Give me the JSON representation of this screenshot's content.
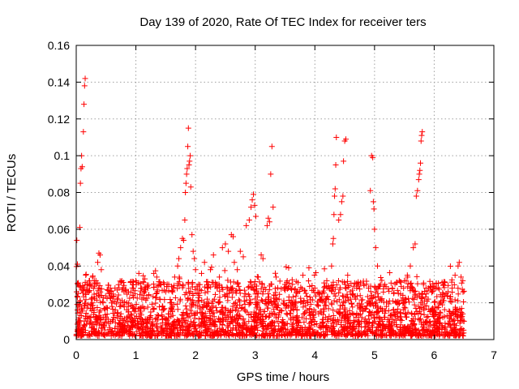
{
  "chart_data": {
    "type": "scatter",
    "title": "Day 139 of 2020, Rate Of TEC Index for receiver ters",
    "xlabel": "GPS time / hours",
    "ylabel": "ROTI / TECUs",
    "xlim": [
      0,
      7
    ],
    "ylim": [
      0,
      0.16
    ],
    "x_ticks": [
      0,
      1,
      2,
      3,
      4,
      5,
      6,
      7
    ],
    "x_tick_labels": [
      "0",
      "1",
      "2",
      "3",
      "4",
      "5",
      "6",
      "7"
    ],
    "y_ticks": [
      0,
      0.02,
      0.04,
      0.06,
      0.08,
      0.1,
      0.12,
      0.14,
      0.16
    ],
    "y_tick_labels": [
      "0",
      "0.02",
      "0.04",
      "0.06",
      "0.08",
      "0.1",
      "0.12",
      "0.14",
      "0.16"
    ],
    "grid": true,
    "marker": "plus",
    "color": "#ff0000",
    "series": [
      {
        "points": [
          [
            0.01,
            0.054
          ],
          [
            0.02,
            0.041
          ],
          [
            0.03,
            0.03
          ],
          [
            0.04,
            0.018
          ],
          [
            0.05,
            0.009
          ],
          [
            0.06,
            0.061
          ],
          [
            0.07,
            0.085
          ],
          [
            0.08,
            0.093
          ],
          [
            0.09,
            0.1
          ],
          [
            0.1,
            0.094
          ],
          [
            0.12,
            0.113
          ],
          [
            0.13,
            0.128
          ],
          [
            0.14,
            0.138
          ],
          [
            0.15,
            0.142
          ],
          [
            0.16,
            0.035
          ],
          [
            0.18,
            0.027
          ],
          [
            0.2,
            0.019
          ],
          [
            0.22,
            0.012
          ],
          [
            0.25,
            0.022
          ],
          [
            0.3,
            0.016
          ],
          [
            0.33,
            0.032
          ],
          [
            0.36,
            0.042
          ],
          [
            0.38,
            0.047
          ],
          [
            0.4,
            0.046
          ],
          [
            0.42,
            0.038
          ],
          [
            0.45,
            0.02
          ],
          [
            0.5,
            0.012
          ],
          [
            0.55,
            0.025
          ],
          [
            0.6,
            0.018
          ],
          [
            0.65,
            0.028
          ],
          [
            0.7,
            0.022
          ],
          [
            0.75,
            0.014
          ],
          [
            0.8,
            0.026
          ],
          [
            0.85,
            0.02
          ],
          [
            0.9,
            0.012
          ],
          [
            0.95,
            0.024
          ],
          [
            1.0,
            0.032
          ],
          [
            1.05,
            0.036
          ],
          [
            1.1,
            0.022
          ],
          [
            1.15,
            0.033
          ],
          [
            1.2,
            0.028
          ],
          [
            1.25,
            0.015
          ],
          [
            1.3,
            0.036
          ],
          [
            1.35,
            0.034
          ],
          [
            1.4,
            0.022
          ],
          [
            1.45,
            0.018
          ],
          [
            1.5,
            0.026
          ],
          [
            1.55,
            0.03
          ],
          [
            1.6,
            0.02
          ],
          [
            1.65,
            0.034
          ],
          [
            1.7,
            0.04
          ],
          [
            1.72,
            0.044
          ],
          [
            1.75,
            0.05
          ],
          [
            1.78,
            0.055
          ],
          [
            1.8,
            0.054
          ],
          [
            1.82,
            0.065
          ],
          [
            1.83,
            0.08
          ],
          [
            1.84,
            0.085
          ],
          [
            1.85,
            0.09
          ],
          [
            1.86,
            0.093
          ],
          [
            1.87,
            0.105
          ],
          [
            1.88,
            0.115
          ],
          [
            1.89,
            0.095
          ],
          [
            1.9,
            0.097
          ],
          [
            1.91,
            0.1
          ],
          [
            1.92,
            0.083
          ],
          [
            1.94,
            0.057
          ],
          [
            1.96,
            0.048
          ],
          [
            1.98,
            0.044
          ],
          [
            2.0,
            0.038
          ],
          [
            2.05,
            0.03
          ],
          [
            2.1,
            0.036
          ],
          [
            2.15,
            0.042
          ],
          [
            2.2,
            0.028
          ],
          [
            2.25,
            0.038
          ],
          [
            2.3,
            0.046
          ],
          [
            2.35,
            0.03
          ],
          [
            2.4,
            0.034
          ],
          [
            2.45,
            0.05
          ],
          [
            2.5,
            0.052
          ],
          [
            2.55,
            0.048
          ],
          [
            2.6,
            0.057
          ],
          [
            2.63,
            0.056
          ],
          [
            2.65,
            0.042
          ],
          [
            2.7,
            0.038
          ],
          [
            2.75,
            0.048
          ],
          [
            2.8,
            0.045
          ],
          [
            2.85,
            0.062
          ],
          [
            2.9,
            0.065
          ],
          [
            2.93,
            0.072
          ],
          [
            2.95,
            0.076
          ],
          [
            2.97,
            0.079
          ],
          [
            2.99,
            0.073
          ],
          [
            3.01,
            0.067
          ],
          [
            3.05,
            0.034
          ],
          [
            3.1,
            0.046
          ],
          [
            3.13,
            0.044
          ],
          [
            3.2,
            0.062
          ],
          [
            3.22,
            0.066
          ],
          [
            3.24,
            0.064
          ],
          [
            3.26,
            0.09
          ],
          [
            3.28,
            0.105
          ],
          [
            3.3,
            0.072
          ],
          [
            3.35,
            0.034
          ],
          [
            3.4,
            0.022
          ],
          [
            3.5,
            0.03
          ],
          [
            3.6,
            0.018
          ],
          [
            3.7,
            0.026
          ],
          [
            3.8,
            0.035
          ],
          [
            3.9,
            0.039
          ],
          [
            4.0,
            0.028
          ],
          [
            4.1,
            0.022
          ],
          [
            4.2,
            0.032
          ],
          [
            4.28,
            0.04
          ],
          [
            4.3,
            0.052
          ],
          [
            4.31,
            0.055
          ],
          [
            4.32,
            0.068
          ],
          [
            4.33,
            0.078
          ],
          [
            4.34,
            0.082
          ],
          [
            4.35,
            0.095
          ],
          [
            4.36,
            0.11
          ],
          [
            4.4,
            0.065
          ],
          [
            4.43,
            0.068
          ],
          [
            4.45,
            0.075
          ],
          [
            4.47,
            0.078
          ],
          [
            4.48,
            0.097
          ],
          [
            4.5,
            0.108
          ],
          [
            4.52,
            0.109
          ],
          [
            4.55,
            0.035
          ],
          [
            4.6,
            0.022
          ],
          [
            4.7,
            0.028
          ],
          [
            4.8,
            0.018
          ],
          [
            4.9,
            0.028
          ],
          [
            4.93,
            0.081
          ],
          [
            4.95,
            0.1
          ],
          [
            4.97,
            0.099
          ],
          [
            4.98,
            0.075
          ],
          [
            4.99,
            0.071
          ],
          [
            5.0,
            0.06
          ],
          [
            5.02,
            0.05
          ],
          [
            5.05,
            0.04
          ],
          [
            5.1,
            0.03
          ],
          [
            5.2,
            0.018
          ],
          [
            5.3,
            0.028
          ],
          [
            5.4,
            0.025
          ],
          [
            5.5,
            0.032
          ],
          [
            5.55,
            0.035
          ],
          [
            5.6,
            0.04
          ],
          [
            5.65,
            0.05
          ],
          [
            5.68,
            0.052
          ],
          [
            5.7,
            0.078
          ],
          [
            5.72,
            0.081
          ],
          [
            5.74,
            0.087
          ],
          [
            5.75,
            0.09
          ],
          [
            5.76,
            0.092
          ],
          [
            5.77,
            0.096
          ],
          [
            5.78,
            0.108
          ],
          [
            5.79,
            0.111
          ],
          [
            5.8,
            0.113
          ],
          [
            5.82,
            0.03
          ],
          [
            5.9,
            0.022
          ],
          [
            6.0,
            0.015
          ],
          [
            6.1,
            0.02
          ],
          [
            6.2,
            0.025
          ],
          [
            6.3,
            0.028
          ],
          [
            6.35,
            0.035
          ],
          [
            6.4,
            0.04
          ],
          [
            6.42,
            0.042
          ],
          [
            6.45,
            0.034
          ],
          [
            6.48,
            0.032
          ],
          [
            6.5,
            0.01
          ]
        ]
      }
    ],
    "dense_band": {
      "x_range": [
        0.0,
        6.5
      ],
      "description_values": "many additional points between 0.002 and 0.035 across all x"
    }
  }
}
